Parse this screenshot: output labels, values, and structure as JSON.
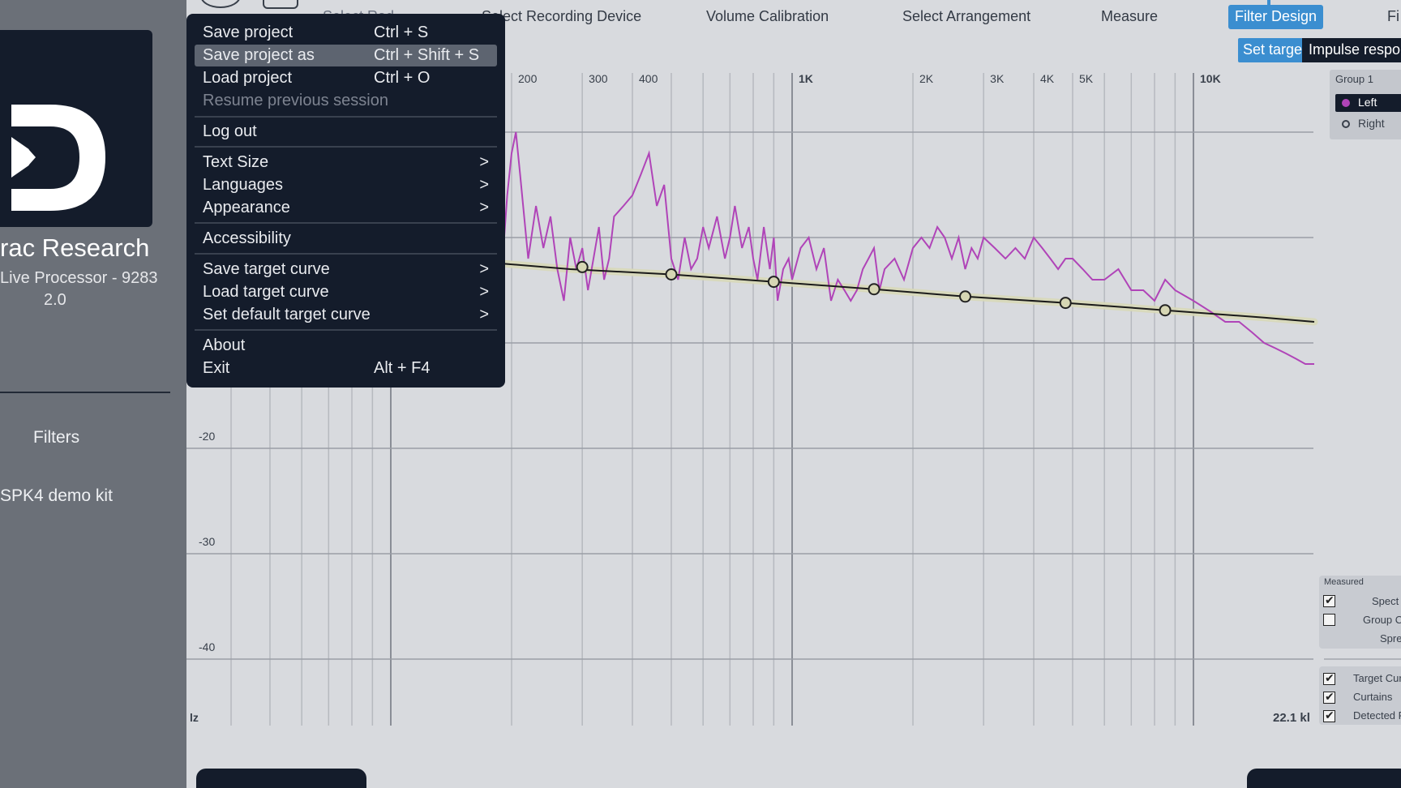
{
  "sidebar": {
    "company": "rac Research",
    "device": "Live Processor - 9283",
    "version": "2.0",
    "items": [
      {
        "label": "Filters"
      },
      {
        "label": "SPK4 demo kit"
      }
    ]
  },
  "nav": {
    "items": [
      {
        "label": "Select Recording Device"
      },
      {
        "label": "Volume Calibration"
      },
      {
        "label": "Select Arrangement"
      },
      {
        "label": "Measure"
      },
      {
        "label": "Filter Design"
      },
      {
        "label": "Fi"
      }
    ],
    "active": "Filter Design",
    "partial_label": "Select Rad"
  },
  "subtabs": {
    "active": "Set target",
    "other": "Impulse respon"
  },
  "menu": {
    "items": [
      {
        "label": "Save project",
        "shortcut": "Ctrl + S"
      },
      {
        "label": "Save project as",
        "shortcut": "Ctrl + Shift + S",
        "highlighted": true
      },
      {
        "label": "Load project",
        "shortcut": "Ctrl + O"
      },
      {
        "label": "Resume previous session",
        "disabled": true
      },
      {
        "label": "Log out"
      },
      {
        "label": "Text Size",
        "submenu": ">"
      },
      {
        "label": "Languages",
        "submenu": ">"
      },
      {
        "label": "Appearance",
        "submenu": ">"
      },
      {
        "label": "Accessibility"
      },
      {
        "label": "Save target curve",
        "submenu": ">"
      },
      {
        "label": "Load target curve",
        "submenu": ">"
      },
      {
        "label": "Set default target curve",
        "submenu": ">"
      },
      {
        "label": "About"
      },
      {
        "label": "Exit",
        "shortcut": "Alt + F4"
      }
    ]
  },
  "group": {
    "title": "Group 1",
    "channels": [
      {
        "label": "Left",
        "selected": true,
        "color": "#b044b8"
      },
      {
        "label": "Right",
        "selected": false
      }
    ]
  },
  "measured": {
    "title": "Measured",
    "options": [
      {
        "label": "Spect",
        "checked": true
      },
      {
        "label": "Group C",
        "checked": false
      },
      {
        "label": "Spre",
        "checked": null
      }
    ]
  },
  "overlays": {
    "options": [
      {
        "label": "Target Cur",
        "checked": true
      },
      {
        "label": "Curtains",
        "checked": true
      },
      {
        "label": "Detected F",
        "checked": true
      }
    ]
  },
  "chart_data": {
    "type": "line",
    "x_scale": "log",
    "x_ticks": [
      {
        "value": 200,
        "label": "200"
      },
      {
        "value": 300,
        "label": "300"
      },
      {
        "value": 400,
        "label": "400"
      },
      {
        "value": 1000,
        "label": "1K"
      },
      {
        "value": 2000,
        "label": "2K"
      },
      {
        "value": 3000,
        "label": "3K"
      },
      {
        "value": 4000,
        "label": "4K"
      },
      {
        "value": 5000,
        "label": "5K"
      },
      {
        "value": 10000,
        "label": "10K"
      },
      {
        "value": 20000,
        "label": ":"
      }
    ],
    "y_ticks": [
      {
        "value": -20,
        "label": "-20"
      },
      {
        "value": -30,
        "label": "-30"
      },
      {
        "value": -40,
        "label": "-40"
      }
    ],
    "y_range": [
      -45,
      6
    ],
    "x_min_label": "lz",
    "x_max_label": "22.1 kl",
    "colors": {
      "measured": "#b044b8",
      "target": "#1a1a1a",
      "target_band": "#d8d8b8",
      "handle": "#d6d6b4"
    },
    "series": [
      {
        "role": "target",
        "x": [
          120,
          180,
          280,
          500,
          900,
          1600,
          2700,
          4800,
          8500,
          15000,
          20000
        ],
        "y": [
          -2.0,
          -2.4,
          -3.0,
          -3.5,
          -4.2,
          -4.9,
          -5.6,
          -6.2,
          -6.9,
          -7.6,
          -8.0
        ]
      },
      {
        "role": "measured",
        "x": [
          170,
          175,
          180,
          185,
          190,
          195,
          200,
          205,
          210,
          220,
          230,
          240,
          250,
          260,
          270,
          280,
          290,
          300,
          310,
          320,
          330,
          340,
          350,
          360,
          380,
          400,
          420,
          440,
          460,
          480,
          500,
          520,
          540,
          560,
          580,
          600,
          620,
          650,
          680,
          700,
          720,
          750,
          780,
          800,
          820,
          850,
          880,
          900,
          920,
          950,
          980,
          1000,
          1050,
          1100,
          1150,
          1200,
          1250,
          1300,
          1350,
          1400,
          1450,
          1500,
          1550,
          1600,
          1650,
          1700,
          1800,
          1900,
          2000,
          2100,
          2200,
          2300,
          2400,
          2500,
          2600,
          2700,
          2800,
          2900,
          3000,
          3200,
          3400,
          3600,
          3800,
          4000,
          4200,
          4400,
          4600,
          4800,
          5000,
          5300,
          5600,
          6000,
          6500,
          7000,
          7500,
          8000,
          8500,
          9000,
          10000,
          11000,
          12000,
          13000,
          14000,
          15000,
          16000,
          17000,
          18000,
          19000,
          20000
        ],
        "y": [
          -3.0,
          -8.0,
          -12.0,
          -6.0,
          -2.0,
          4.0,
          8.0,
          10.0,
          6.0,
          -2.0,
          3.0,
          -1.0,
          2.0,
          -3.0,
          -6.0,
          0.0,
          -3.0,
          -1.0,
          -5.0,
          -2.0,
          1.0,
          -4.0,
          -2.0,
          2.0,
          3.0,
          4.0,
          6.0,
          8.0,
          3.0,
          5.0,
          -2.0,
          -4.0,
          0.0,
          -3.0,
          -2.0,
          1.0,
          -1.0,
          2.0,
          -2.0,
          0.0,
          3.0,
          -1.0,
          1.0,
          -2.0,
          -4.0,
          1.0,
          -3.0,
          0.0,
          -6.0,
          -3.0,
          -2.0,
          -4.0,
          -1.0,
          0.0,
          -3.0,
          -1.0,
          -6.0,
          -4.0,
          -5.0,
          -6.0,
          -5.0,
          -3.0,
          -2.0,
          -1.0,
          -5.0,
          -3.0,
          -2.0,
          -4.0,
          -1.0,
          0.0,
          -1.0,
          1.0,
          0.0,
          -2.0,
          0.0,
          -3.0,
          -1.0,
          -2.0,
          0.0,
          -1.0,
          -2.0,
          -1.0,
          -2.0,
          0.0,
          -1.0,
          -2.0,
          -3.0,
          -2.0,
          -2.0,
          -3.0,
          -4.0,
          -4.0,
          -3.0,
          -5.0,
          -5.0,
          -6.0,
          -4.0,
          -5.0,
          -6.0,
          -7.0,
          -8.0,
          -8.0,
          -9.0,
          -10.0,
          -10.5,
          -11.0,
          -11.5,
          -12.0,
          -12.0
        ]
      }
    ],
    "handles": [
      {
        "x": 300,
        "y": -2.8
      },
      {
        "x": 500,
        "y": -3.5
      },
      {
        "x": 900,
        "y": -4.2
      },
      {
        "x": 1600,
        "y": -4.9
      },
      {
        "x": 2700,
        "y": -5.6
      },
      {
        "x": 4800,
        "y": -6.2
      },
      {
        "x": 8500,
        "y": -6.9
      }
    ]
  }
}
